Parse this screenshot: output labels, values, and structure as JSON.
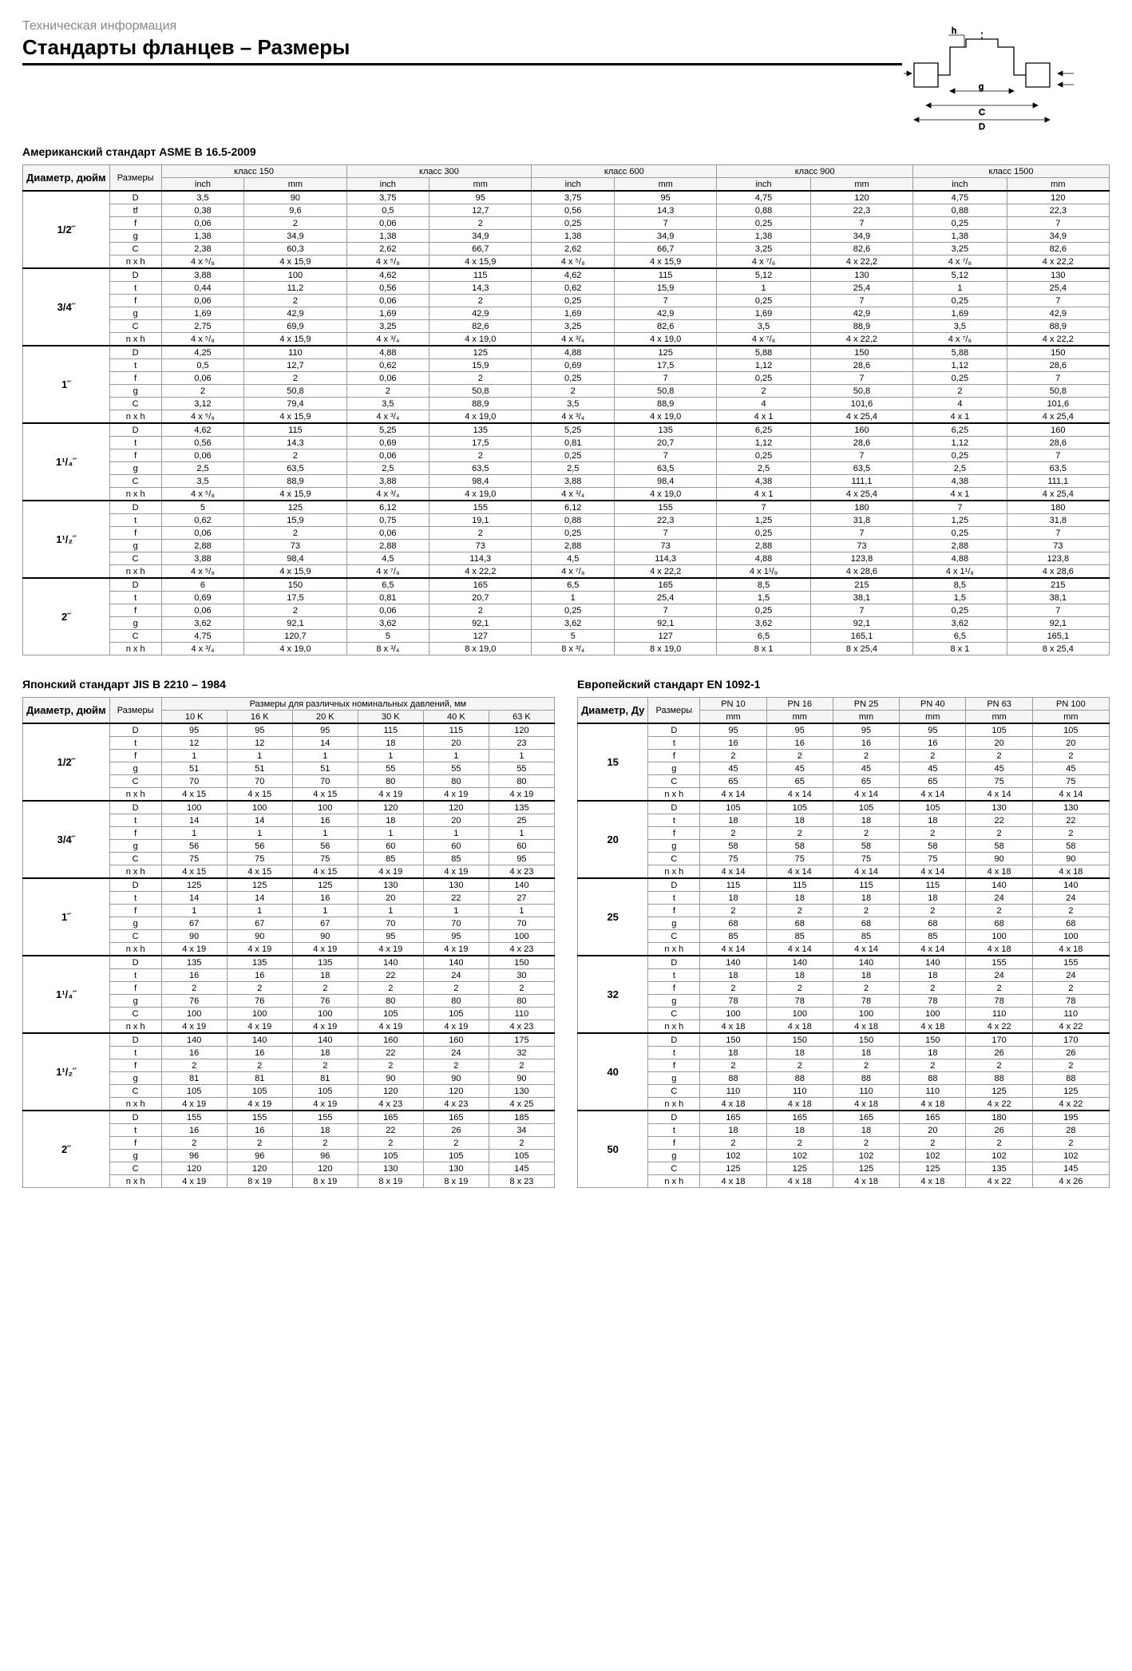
{
  "breadcrumb": "Техническая информация",
  "title": "Стандарты фланцев – Размеры",
  "diagram_labels": {
    "h": "h",
    "g": "g",
    "c": "C",
    "d": "D"
  },
  "asme": {
    "title": "Американский стандарт ASME B 16.5-2009",
    "head": {
      "diam": "Диаметр, дюйм",
      "dim": "Размеры"
    },
    "classes": [
      "класс 150",
      "класс 300",
      "класс 600",
      "класс 900",
      "класс 1500"
    ],
    "units": [
      "inch",
      "mm"
    ],
    "dims": [
      "D",
      "tf",
      "f",
      "g",
      "C",
      "n x h"
    ],
    "dims2": [
      "D",
      "t",
      "f",
      "g",
      "C",
      "n x h"
    ],
    "diams": [
      "1/2˝",
      "3/4˝",
      "1˝",
      "1¹/₄˝",
      "1¹/₂˝",
      "2˝"
    ],
    "rows": [
      [
        [
          "3,5",
          "90",
          "3,75",
          "95",
          "3,75",
          "95",
          "4,75",
          "120",
          "4,75",
          "120"
        ],
        [
          "0,38",
          "9,6",
          "0,5",
          "12,7",
          "0,56",
          "14,3",
          "0,88",
          "22,3",
          "0,88",
          "22,3"
        ],
        [
          "0,06",
          "2",
          "0,06",
          "2",
          "0,25",
          "7",
          "0,25",
          "7",
          "0,25",
          "7"
        ],
        [
          "1,38",
          "34,9",
          "1,38",
          "34,9",
          "1,38",
          "34,9",
          "1,38",
          "34,9",
          "1,38",
          "34,9"
        ],
        [
          "2,38",
          "60,3",
          "2,62",
          "66,7",
          "2,62",
          "66,7",
          "3,25",
          "82,6",
          "3,25",
          "82,6"
        ],
        [
          "4 x ⁵/₈",
          "4 x 15,9",
          "4 x ⁵/₈",
          "4 x 15,9",
          "4 x ⁵/₈",
          "4 x 15,9",
          "4 x ⁷/₈",
          "4 x 22,2",
          "4 x ⁷/₈",
          "4 x 22,2"
        ]
      ],
      [
        [
          "3,88",
          "100",
          "4,62",
          "115",
          "4,62",
          "115",
          "5,12",
          "130",
          "5,12",
          "130"
        ],
        [
          "0,44",
          "11,2",
          "0,56",
          "14,3",
          "0,62",
          "15,9",
          "1",
          "25,4",
          "1",
          "25,4"
        ],
        [
          "0,06",
          "2",
          "0,06",
          "2",
          "0,25",
          "7",
          "0,25",
          "7",
          "0,25",
          "7"
        ],
        [
          "1,69",
          "42,9",
          "1,69",
          "42,9",
          "1,69",
          "42,9",
          "1,69",
          "42,9",
          "1,69",
          "42,9"
        ],
        [
          "2,75",
          "69,9",
          "3,25",
          "82,6",
          "3,25",
          "82,6",
          "3,5",
          "88,9",
          "3,5",
          "88,9"
        ],
        [
          "4 x ⁵/₈",
          "4 x 15,9",
          "4 x ³/₄",
          "4 x 19,0",
          "4 x ³/₄",
          "4 x 19,0",
          "4 x ⁷/₈",
          "4 x 22,2",
          "4 x ⁷/₈",
          "4 x 22,2"
        ]
      ],
      [
        [
          "4,25",
          "110",
          "4,88",
          "125",
          "4,88",
          "125",
          "5,88",
          "150",
          "5,88",
          "150"
        ],
        [
          "0,5",
          "12,7",
          "0,62",
          "15,9",
          "0,69",
          "17,5",
          "1,12",
          "28,6",
          "1,12",
          "28,6"
        ],
        [
          "0,06",
          "2",
          "0,06",
          "2",
          "0,25",
          "7",
          "0,25",
          "7",
          "0,25",
          "7"
        ],
        [
          "2",
          "50,8",
          "2",
          "50,8",
          "2",
          "50,8",
          "2",
          "50,8",
          "2",
          "50,8"
        ],
        [
          "3,12",
          "79,4",
          "3,5",
          "88,9",
          "3,5",
          "88,9",
          "4",
          "101,6",
          "4",
          "101,6"
        ],
        [
          "4 x ⁵/₈",
          "4 x 15,9",
          "4 x ³/₄",
          "4 x 19,0",
          "4 x ³/₄",
          "4 x 19,0",
          "4 x 1",
          "4 x 25,4",
          "4 x 1",
          "4 x 25,4"
        ]
      ],
      [
        [
          "4,62",
          "115",
          "5,25",
          "135",
          "5,25",
          "135",
          "6,25",
          "160",
          "6,25",
          "160"
        ],
        [
          "0,56",
          "14,3",
          "0,69",
          "17,5",
          "0,81",
          "20,7",
          "1,12",
          "28,6",
          "1,12",
          "28,6"
        ],
        [
          "0,06",
          "2",
          "0,06",
          "2",
          "0,25",
          "7",
          "0,25",
          "7",
          "0,25",
          "7"
        ],
        [
          "2,5",
          "63,5",
          "2,5",
          "63,5",
          "2,5",
          "63,5",
          "2,5",
          "63,5",
          "2,5",
          "63,5"
        ],
        [
          "3,5",
          "88,9",
          "3,88",
          "98,4",
          "3,88",
          "98,4",
          "4,38",
          "111,1",
          "4,38",
          "111,1"
        ],
        [
          "4 x ⁵/₈",
          "4 x 15,9",
          "4 x ³/₄",
          "4 x 19,0",
          "4 x ³/₄",
          "4 x 19,0",
          "4 x 1",
          "4 x 25,4",
          "4 x 1",
          "4 x 25,4"
        ]
      ],
      [
        [
          "5",
          "125",
          "6,12",
          "155",
          "6,12",
          "155",
          "7",
          "180",
          "7",
          "180"
        ],
        [
          "0,62",
          "15,9",
          "0,75",
          "19,1",
          "0,88",
          "22,3",
          "1,25",
          "31,8",
          "1,25",
          "31,8"
        ],
        [
          "0,06",
          "2",
          "0,06",
          "2",
          "0,25",
          "7",
          "0,25",
          "7",
          "0,25",
          "7"
        ],
        [
          "2,88",
          "73",
          "2,88",
          "73",
          "2,88",
          "73",
          "2,88",
          "73",
          "2,88",
          "73"
        ],
        [
          "3,88",
          "98,4",
          "4,5",
          "114,3",
          "4,5",
          "114,3",
          "4,88",
          "123,8",
          "4,88",
          "123,8"
        ],
        [
          "4 x ⁵/₈",
          "4 x 15,9",
          "4 x ⁷/₈",
          "4 x 22,2",
          "4 x ⁷/₈",
          "4 x 22,2",
          "4 x 1¹/₈",
          "4 x 28,6",
          "4 x 1¹/₈",
          "4 x 28,6"
        ]
      ],
      [
        [
          "6",
          "150",
          "6,5",
          "165",
          "6,5",
          "165",
          "8,5",
          "215",
          "8,5",
          "215"
        ],
        [
          "0,69",
          "17,5",
          "0,81",
          "20,7",
          "1",
          "25,4",
          "1,5",
          "38,1",
          "1,5",
          "38,1"
        ],
        [
          "0,06",
          "2",
          "0,06",
          "2",
          "0,25",
          "7",
          "0,25",
          "7",
          "0,25",
          "7"
        ],
        [
          "3,62",
          "92,1",
          "3,62",
          "92,1",
          "3,62",
          "92,1",
          "3,62",
          "92,1",
          "3,62",
          "92,1"
        ],
        [
          "4,75",
          "120,7",
          "5",
          "127",
          "5",
          "127",
          "6,5",
          "165,1",
          "6,5",
          "165,1"
        ],
        [
          "4 x ³/₄",
          "4 x 19,0",
          "8 x ³/₄",
          "8 x 19,0",
          "8 x ³/₄",
          "8 x 19,0",
          "8 x 1",
          "8 x 25,4",
          "8 x 1",
          "8 x 25,4"
        ]
      ]
    ]
  },
  "jis": {
    "title": "Японский стандарт JIS B 2210 – 1984",
    "head": {
      "diam": "Диаметр, дюйм",
      "dim": "Размеры",
      "pressures": "Размеры для различных номинальных давлений, мм"
    },
    "classes": [
      "10 K",
      "16 K",
      "20 K",
      "30 K",
      "40 K",
      "63 K"
    ],
    "dims": [
      "D",
      "t",
      "f",
      "g",
      "C",
      "n x h"
    ],
    "diams": [
      "1/2˝",
      "3/4˝",
      "1˝",
      "1¹/₄˝",
      "1¹/₂˝",
      "2˝"
    ],
    "rows": [
      [
        [
          "95",
          "95",
          "95",
          "115",
          "115",
          "120"
        ],
        [
          "12",
          "12",
          "14",
          "18",
          "20",
          "23"
        ],
        [
          "1",
          "1",
          "1",
          "1",
          "1",
          "1"
        ],
        [
          "51",
          "51",
          "51",
          "55",
          "55",
          "55"
        ],
        [
          "70",
          "70",
          "70",
          "80",
          "80",
          "80"
        ],
        [
          "4 x 15",
          "4 x 15",
          "4 x 15",
          "4 x 19",
          "4 x 19",
          "4 x 19"
        ]
      ],
      [
        [
          "100",
          "100",
          "100",
          "120",
          "120",
          "135"
        ],
        [
          "14",
          "14",
          "16",
          "18",
          "20",
          "25"
        ],
        [
          "1",
          "1",
          "1",
          "1",
          "1",
          "1"
        ],
        [
          "56",
          "56",
          "56",
          "60",
          "60",
          "60"
        ],
        [
          "75",
          "75",
          "75",
          "85",
          "85",
          "95"
        ],
        [
          "4 x 15",
          "4 x 15",
          "4 x 15",
          "4 x 19",
          "4 x 19",
          "4 x 23"
        ]
      ],
      [
        [
          "125",
          "125",
          "125",
          "130",
          "130",
          "140"
        ],
        [
          "14",
          "14",
          "16",
          "20",
          "22",
          "27"
        ],
        [
          "1",
          "1",
          "1",
          "1",
          "1",
          "1"
        ],
        [
          "67",
          "67",
          "67",
          "70",
          "70",
          "70"
        ],
        [
          "90",
          "90",
          "90",
          "95",
          "95",
          "100"
        ],
        [
          "4 x 19",
          "4 x 19",
          "4 x 19",
          "4 x 19",
          "4 x 19",
          "4 x 23"
        ]
      ],
      [
        [
          "135",
          "135",
          "135",
          "140",
          "140",
          "150"
        ],
        [
          "16",
          "16",
          "18",
          "22",
          "24",
          "30"
        ],
        [
          "2",
          "2",
          "2",
          "2",
          "2",
          "2"
        ],
        [
          "76",
          "76",
          "76",
          "80",
          "80",
          "80"
        ],
        [
          "100",
          "100",
          "100",
          "105",
          "105",
          "110"
        ],
        [
          "4 x 19",
          "4 x 19",
          "4 x 19",
          "4 x 19",
          "4 x 19",
          "4 x 23"
        ]
      ],
      [
        [
          "140",
          "140",
          "140",
          "160",
          "160",
          "175"
        ],
        [
          "16",
          "16",
          "18",
          "22",
          "24",
          "32"
        ],
        [
          "2",
          "2",
          "2",
          "2",
          "2",
          "2"
        ],
        [
          "81",
          "81",
          "81",
          "90",
          "90",
          "90"
        ],
        [
          "105",
          "105",
          "105",
          "120",
          "120",
          "130"
        ],
        [
          "4 x 19",
          "4 x 19",
          "4 x 19",
          "4 x 23",
          "4 x 23",
          "4 x 25"
        ]
      ],
      [
        [
          "155",
          "155",
          "155",
          "165",
          "165",
          "185"
        ],
        [
          "16",
          "16",
          "18",
          "22",
          "26",
          "34"
        ],
        [
          "2",
          "2",
          "2",
          "2",
          "2",
          "2"
        ],
        [
          "96",
          "96",
          "96",
          "105",
          "105",
          "105"
        ],
        [
          "120",
          "120",
          "120",
          "130",
          "130",
          "145"
        ],
        [
          "4 x 19",
          "8 x 19",
          "8 x 19",
          "8 x 19",
          "8 x 19",
          "8 x 23"
        ]
      ]
    ]
  },
  "en": {
    "title": "Европейский стандарт EN 1092-1",
    "head": {
      "diam": "Диаметр, Ду",
      "dim": "Размеры"
    },
    "classes": [
      "PN 10",
      "PN 16",
      "PN 25",
      "PN 40",
      "PN 63",
      "PN 100"
    ],
    "unit": "mm",
    "dims": [
      "D",
      "t",
      "f",
      "g",
      "C",
      "n x h"
    ],
    "diams": [
      "15",
      "20",
      "25",
      "32",
      "40",
      "50"
    ],
    "rows": [
      [
        [
          "95",
          "95",
          "95",
          "95",
          "105",
          "105"
        ],
        [
          "16",
          "16",
          "16",
          "16",
          "20",
          "20"
        ],
        [
          "2",
          "2",
          "2",
          "2",
          "2",
          "2"
        ],
        [
          "45",
          "45",
          "45",
          "45",
          "45",
          "45"
        ],
        [
          "65",
          "65",
          "65",
          "65",
          "75",
          "75"
        ],
        [
          "4 x 14",
          "4 x 14",
          "4 x 14",
          "4 x 14",
          "4 x 14",
          "4 x 14"
        ]
      ],
      [
        [
          "105",
          "105",
          "105",
          "105",
          "130",
          "130"
        ],
        [
          "18",
          "18",
          "18",
          "18",
          "22",
          "22"
        ],
        [
          "2",
          "2",
          "2",
          "2",
          "2",
          "2"
        ],
        [
          "58",
          "58",
          "58",
          "58",
          "58",
          "58"
        ],
        [
          "75",
          "75",
          "75",
          "75",
          "90",
          "90"
        ],
        [
          "4 x 14",
          "4 x 14",
          "4 x 14",
          "4 x 14",
          "4 x 18",
          "4 x 18"
        ]
      ],
      [
        [
          "115",
          "115",
          "115",
          "115",
          "140",
          "140"
        ],
        [
          "18",
          "18",
          "18",
          "18",
          "24",
          "24"
        ],
        [
          "2",
          "2",
          "2",
          "2",
          "2",
          "2"
        ],
        [
          "68",
          "68",
          "68",
          "68",
          "68",
          "68"
        ],
        [
          "85",
          "85",
          "85",
          "85",
          "100",
          "100"
        ],
        [
          "4 x 14",
          "4 x 14",
          "4 x 14",
          "4 x 14",
          "4 x 18",
          "4 x 18"
        ]
      ],
      [
        [
          "140",
          "140",
          "140",
          "140",
          "155",
          "155"
        ],
        [
          "18",
          "18",
          "18",
          "18",
          "24",
          "24"
        ],
        [
          "2",
          "2",
          "2",
          "2",
          "2",
          "2"
        ],
        [
          "78",
          "78",
          "78",
          "78",
          "78",
          "78"
        ],
        [
          "100",
          "100",
          "100",
          "100",
          "110",
          "110"
        ],
        [
          "4 x 18",
          "4 x 18",
          "4 x 18",
          "4 x 18",
          "4 x 22",
          "4 x 22"
        ]
      ],
      [
        [
          "150",
          "150",
          "150",
          "150",
          "170",
          "170"
        ],
        [
          "18",
          "18",
          "18",
          "18",
          "26",
          "26"
        ],
        [
          "2",
          "2",
          "2",
          "2",
          "2",
          "2"
        ],
        [
          "88",
          "88",
          "88",
          "88",
          "88",
          "88"
        ],
        [
          "110",
          "110",
          "110",
          "110",
          "125",
          "125"
        ],
        [
          "4 x 18",
          "4 x 18",
          "4 x 18",
          "4 x 18",
          "4 x 22",
          "4 x 22"
        ]
      ],
      [
        [
          "165",
          "165",
          "165",
          "165",
          "180",
          "195"
        ],
        [
          "18",
          "18",
          "18",
          "20",
          "26",
          "28"
        ],
        [
          "2",
          "2",
          "2",
          "2",
          "2",
          "2"
        ],
        [
          "102",
          "102",
          "102",
          "102",
          "102",
          "102"
        ],
        [
          "125",
          "125",
          "125",
          "125",
          "135",
          "145"
        ],
        [
          "4 x 18",
          "4 x 18",
          "4 x 18",
          "4 x 18",
          "4 x 22",
          "4 x 26"
        ]
      ]
    ]
  }
}
